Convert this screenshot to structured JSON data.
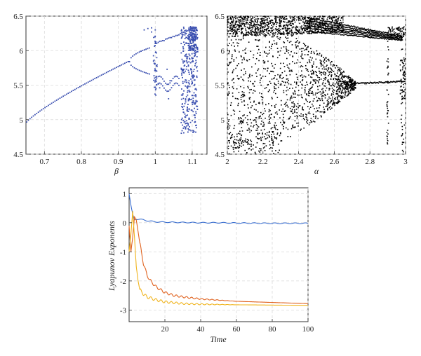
{
  "chart_data": [
    {
      "type": "scatter",
      "title": "",
      "xlabel": "β",
      "ylabel": "",
      "xlim": [
        0.65,
        1.14
      ],
      "ylim": [
        4.5,
        6.5
      ],
      "xticks": [
        "0.7",
        "0.8",
        "0.9",
        "1",
        "1.1"
      ],
      "yticks": [
        "4.5",
        "5",
        "5.5",
        "6",
        "6.5"
      ],
      "grid": true,
      "marker_color": "#3a4fb0",
      "series": [
        {
          "description_points": [
            [
              0.65,
              4.95
            ],
            [
              0.7,
              5.1
            ],
            [
              0.75,
              5.28
            ],
            [
              0.8,
              5.44
            ],
            [
              0.85,
              5.6
            ],
            [
              0.9,
              5.74
            ],
            [
              0.93,
              5.85
            ],
            [
              0.96,
              5.98
            ],
            [
              0.99,
              6.1
            ],
            [
              1.03,
              6.2
            ],
            [
              1.08,
              6.3
            ],
            [
              1.11,
              6.36
            ],
            [
              0.96,
              5.7
            ],
            [
              0.99,
              5.55
            ],
            [
              1.03,
              5.45
            ],
            [
              1.06,
              5.3
            ],
            [
              1.1,
              5.0
            ]
          ]
        }
      ]
    },
    {
      "type": "scatter",
      "title": "",
      "xlabel": "α",
      "ylabel": "",
      "xlim": [
        2,
        3
      ],
      "ylim": [
        4.5,
        6.5
      ],
      "xticks": [
        "2",
        "2.2",
        "2.4",
        "2.6",
        "2.8",
        "3"
      ],
      "yticks": [
        "4.5",
        "5",
        "5.5",
        "6",
        "6.5"
      ],
      "grid": true,
      "marker_color": "#000000",
      "series": [
        {
          "description_points": [
            [
              2.0,
              6.45
            ],
            [
              2.3,
              6.45
            ],
            [
              2.6,
              6.35
            ],
            [
              2.8,
              6.25
            ],
            [
              2.98,
              6.15
            ],
            [
              2.0,
              5.5
            ],
            [
              2.3,
              5.5
            ],
            [
              2.5,
              5.5
            ],
            [
              2.7,
              5.52
            ],
            [
              2.75,
              5.5
            ],
            [
              2.9,
              5.55
            ],
            [
              3.0,
              5.58
            ],
            [
              2.1,
              4.6
            ],
            [
              2.3,
              5.0
            ],
            [
              2.2,
              6.0
            ],
            [
              2.5,
              6.1
            ]
          ]
        }
      ]
    },
    {
      "type": "line",
      "title": "",
      "xlabel": "Time",
      "ylabel": "Lyapunov Exponents",
      "xlim": [
        0,
        100
      ],
      "ylim": [
        -3.4,
        1.2
      ],
      "xticks": [
        "20",
        "40",
        "60",
        "80",
        "100"
      ],
      "yticks": [
        "-3",
        "-2",
        "-1",
        "0",
        "1"
      ],
      "grid": true,
      "series": [
        {
          "color": "#3b6fd0",
          "x": [
            0,
            1,
            2,
            3,
            4,
            6,
            8,
            10,
            15,
            20,
            30,
            40,
            50,
            60,
            80,
            100
          ],
          "y": [
            1.0,
            0.6,
            0.3,
            0.1,
            0.12,
            0.12,
            0.1,
            0.07,
            0.03,
            0.02,
            0.01,
            0.0,
            0.0,
            -0.01,
            -0.02,
            -0.02
          ]
        },
        {
          "color": "#e0621e",
          "x": [
            0,
            1,
            2,
            3,
            4,
            5,
            6,
            8,
            10,
            12,
            15,
            20,
            25,
            30,
            40,
            50,
            60,
            70,
            80,
            90,
            100
          ],
          "y": [
            -0.1,
            -1.0,
            -0.5,
            0.2,
            0.1,
            -0.3,
            -0.7,
            -1.4,
            -1.8,
            -2.0,
            -2.2,
            -2.4,
            -2.5,
            -2.55,
            -2.62,
            -2.66,
            -2.7,
            -2.72,
            -2.74,
            -2.76,
            -2.78
          ]
        },
        {
          "color": "#f0b41e",
          "x": [
            0,
            1,
            2,
            3,
            4,
            5,
            6,
            8,
            10,
            15,
            20,
            30,
            40,
            60,
            80,
            100
          ],
          "y": [
            -1.0,
            -0.4,
            0.4,
            -0.5,
            -1.5,
            -2.0,
            -2.3,
            -2.45,
            -2.55,
            -2.65,
            -2.72,
            -2.78,
            -2.8,
            -2.82,
            -2.83,
            -2.84
          ]
        }
      ]
    }
  ]
}
